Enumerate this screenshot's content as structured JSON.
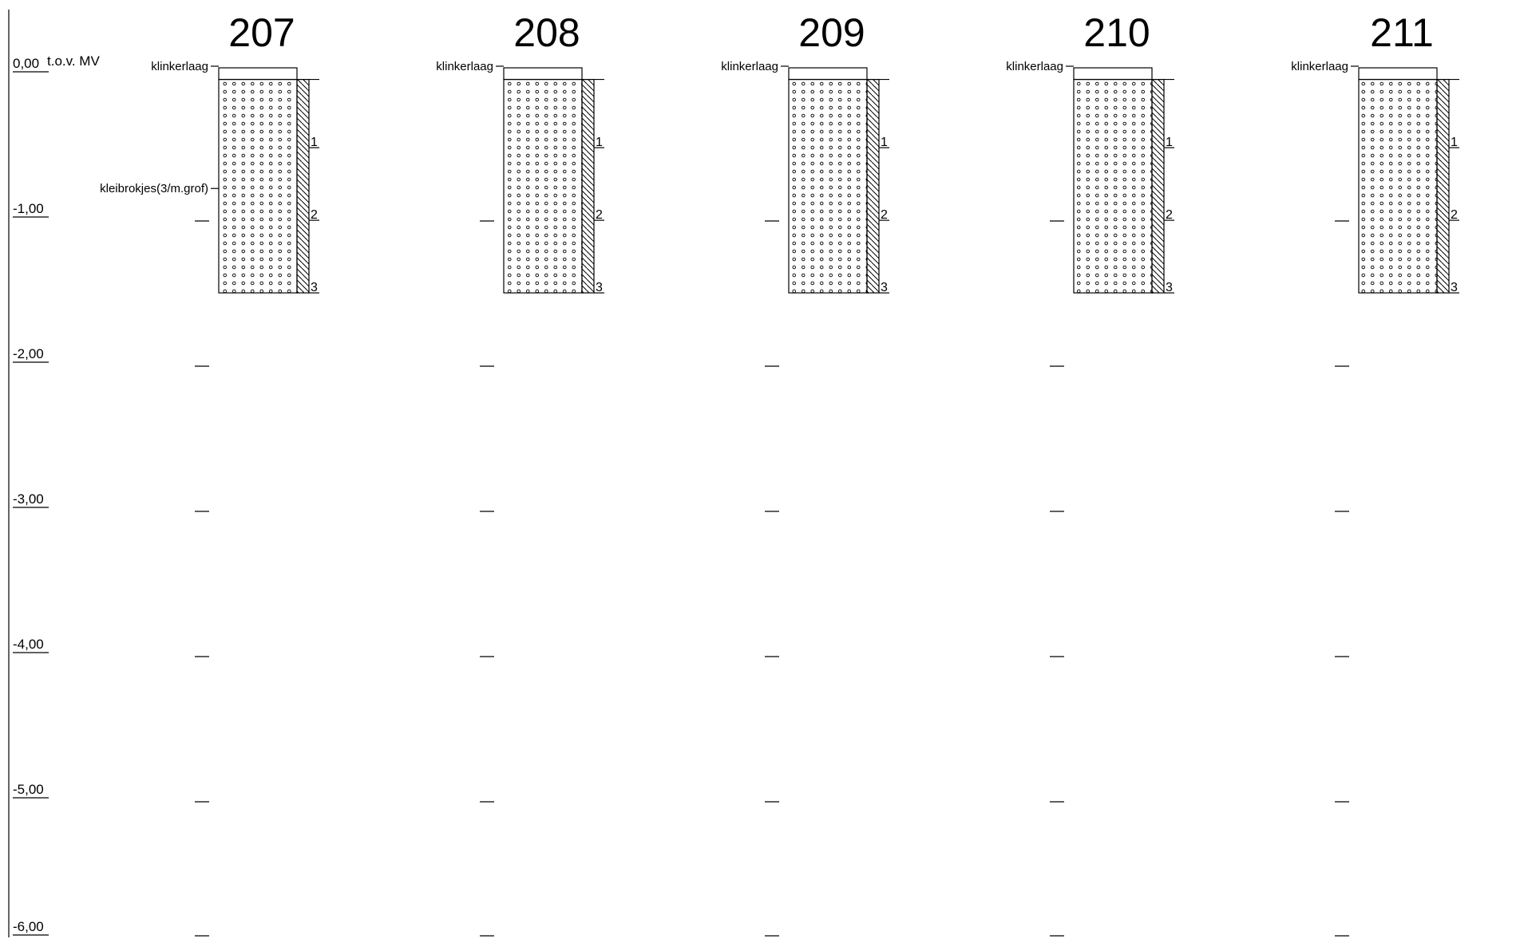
{
  "depth_axis": {
    "ticks": [
      {
        "depth": 0,
        "label": "0,00",
        "suffix": "t.o.v. MV"
      },
      {
        "depth": -1,
        "label": "-1,00",
        "suffix": ""
      },
      {
        "depth": -2,
        "label": "-2,00",
        "suffix": ""
      },
      {
        "depth": -3,
        "label": "-3,00",
        "suffix": ""
      },
      {
        "depth": -4,
        "label": "-4,00",
        "suffix": ""
      },
      {
        "depth": -5,
        "label": "-5,00",
        "suffix": ""
      },
      {
        "depth": -6,
        "label": "-6,00",
        "suffix": ""
      }
    ]
  },
  "boreholes": [
    {
      "id": "207",
      "layers": [
        {
          "label": "klinkerlaag",
          "top": 0.0,
          "bottom": -0.08,
          "pattern": "blank"
        },
        {
          "label": "kleibrokjes(3/m.grof)",
          "top": -0.08,
          "bottom": -1.55,
          "pattern": "dots",
          "label_depth": -0.82
        }
      ],
      "samples": [
        {
          "label": "1",
          "top": -0.08,
          "bottom": -0.55
        },
        {
          "label": "2",
          "top": -0.55,
          "bottom": -1.05
        },
        {
          "label": "3",
          "top": -1.05,
          "bottom": -1.55
        }
      ]
    },
    {
      "id": "208",
      "layers": [
        {
          "label": "klinkerlaag",
          "top": 0.0,
          "bottom": -0.08,
          "pattern": "blank"
        },
        {
          "label": "",
          "top": -0.08,
          "bottom": -1.55,
          "pattern": "dots"
        }
      ],
      "samples": [
        {
          "label": "1",
          "top": -0.08,
          "bottom": -0.55
        },
        {
          "label": "2",
          "top": -0.55,
          "bottom": -1.05
        },
        {
          "label": "3",
          "top": -1.05,
          "bottom": -1.55
        }
      ]
    },
    {
      "id": "209",
      "layers": [
        {
          "label": "klinkerlaag",
          "top": 0.0,
          "bottom": -0.08,
          "pattern": "blank"
        },
        {
          "label": "",
          "top": -0.08,
          "bottom": -1.55,
          "pattern": "dots"
        }
      ],
      "samples": [
        {
          "label": "1",
          "top": -0.08,
          "bottom": -0.55
        },
        {
          "label": "2",
          "top": -0.55,
          "bottom": -1.05
        },
        {
          "label": "3",
          "top": -1.05,
          "bottom": -1.55
        }
      ]
    },
    {
      "id": "210",
      "layers": [
        {
          "label": "klinkerlaag",
          "top": 0.0,
          "bottom": -0.08,
          "pattern": "blank"
        },
        {
          "label": "",
          "top": -0.08,
          "bottom": -1.55,
          "pattern": "dots"
        }
      ],
      "samples": [
        {
          "label": "1",
          "top": -0.08,
          "bottom": -0.55
        },
        {
          "label": "2",
          "top": -0.55,
          "bottom": -1.05
        },
        {
          "label": "3",
          "top": -1.05,
          "bottom": -1.55
        }
      ]
    },
    {
      "id": "211",
      "layers": [
        {
          "label": "klinkerlaag",
          "top": 0.0,
          "bottom": -0.08,
          "pattern": "blank"
        },
        {
          "label": "",
          "top": -0.08,
          "bottom": -1.55,
          "pattern": "dots"
        }
      ],
      "samples": [
        {
          "label": "1",
          "top": -0.08,
          "bottom": -0.55
        },
        {
          "label": "2",
          "top": -0.55,
          "bottom": -1.05
        },
        {
          "label": "3",
          "top": -1.05,
          "bottom": -1.55
        }
      ]
    }
  ]
}
